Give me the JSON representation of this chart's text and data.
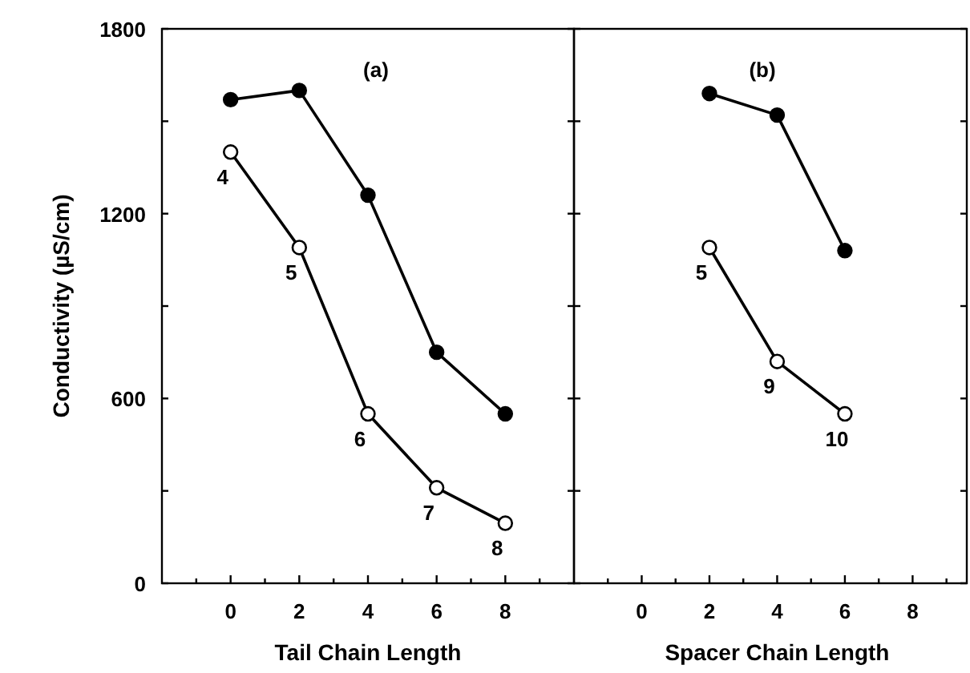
{
  "chart_data": [
    {
      "type": "line",
      "title": "(a)",
      "xlabel": "Tail Chain Length",
      "ylabel": "Conductivity (µS/cm)",
      "xlim": [
        -2,
        10
      ],
      "ylim": [
        0,
        1800
      ],
      "xticks": [
        {
          "value": -1,
          "label": null
        },
        0,
        {
          "value": 1,
          "label": null
        },
        2,
        {
          "value": 3,
          "label": null
        },
        4,
        {
          "value": 5,
          "label": null
        },
        6,
        {
          "value": 7,
          "label": null
        },
        8,
        {
          "value": 9,
          "label": null
        }
      ],
      "yticks": [
        0,
        {
          "value": 300,
          "label": null
        },
        600,
        {
          "value": 900,
          "label": null
        },
        1200,
        {
          "value": 1500,
          "label": null
        },
        1800
      ],
      "marker": "circle",
      "line_style": "solid",
      "series": [
        {
          "color": "#000000",
          "x": [
            0,
            2,
            4,
            6,
            8
          ],
          "values": [
            1570,
            1600,
            1260,
            750,
            550
          ]
        },
        {
          "color": "#000000",
          "x": [
            0,
            2,
            4,
            6,
            8
          ],
          "values": [
            1400,
            1090,
            550,
            310,
            195
          ]
        }
      ],
      "annotations": [
        {
          "text": "4",
          "x": 0,
          "y": 1400
        },
        {
          "text": "5",
          "x": 2,
          "y": 1090
        },
        {
          "text": "6",
          "x": 4,
          "y": 550
        },
        {
          "text": "7",
          "x": 6,
          "y": 310
        },
        {
          "text": "8",
          "x": 8,
          "y": 195
        }
      ]
    },
    {
      "type": "line",
      "title": "(b)",
      "xlabel": "Spacer Chain Length",
      "xlim": [
        -2,
        9.6
      ],
      "ylim": [
        0,
        1800
      ],
      "xticks": [
        {
          "value": -1,
          "label": null
        },
        0,
        {
          "value": 1,
          "label": null
        },
        2,
        {
          "value": 3,
          "label": null
        },
        4,
        {
          "value": 5,
          "label": null
        },
        6,
        {
          "value": 7,
          "label": null
        },
        8,
        {
          "value": 9,
          "label": null
        }
      ],
      "yticks": [
        {
          "value": 0,
          "label": null
        },
        {
          "value": 300,
          "label": null
        },
        {
          "value": 600,
          "label": null
        },
        {
          "value": 900,
          "label": null
        },
        {
          "value": 1200,
          "label": null
        },
        {
          "value": 1500,
          "label": null
        },
        {
          "value": 1800,
          "label": null
        }
      ],
      "tick_labels": "x",
      "marker": "circle",
      "line_style": "solid",
      "series": [
        {
          "color": "#000000",
          "x": [
            2,
            4,
            6
          ],
          "values": [
            1590,
            1520,
            1080
          ]
        },
        {
          "color": "#000000",
          "x": [
            2,
            4,
            6
          ],
          "values": [
            1090,
            720,
            550
          ]
        }
      ],
      "annotations": [
        {
          "text": "5",
          "x": 2,
          "y": 1090
        },
        {
          "text": "9",
          "x": 4,
          "y": 720
        },
        {
          "text": "10",
          "x": 6,
          "y": 550
        }
      ]
    }
  ]
}
